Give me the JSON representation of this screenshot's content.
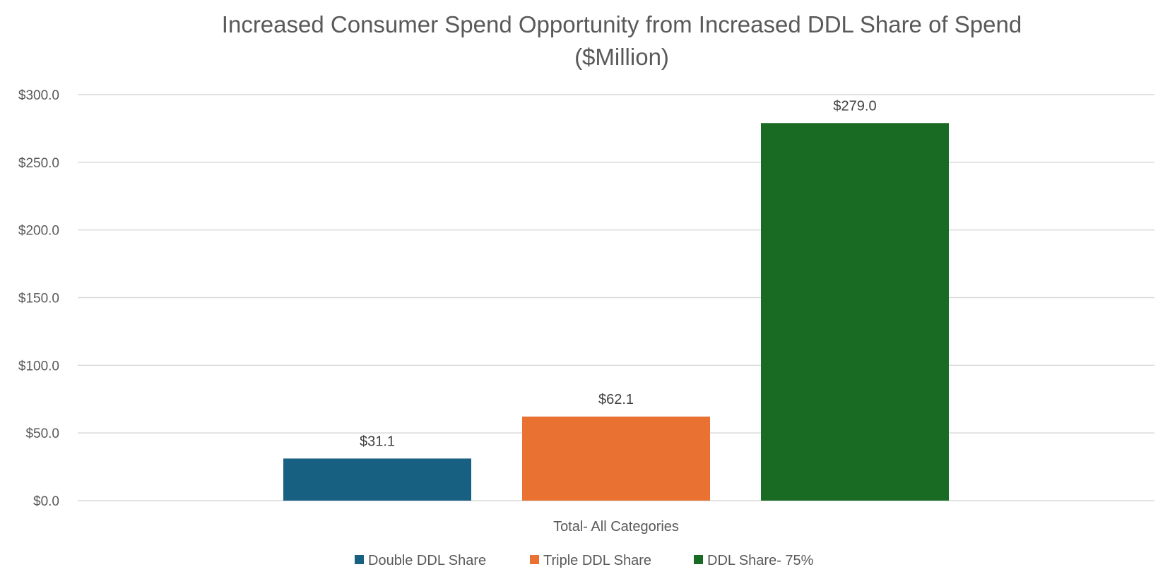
{
  "chart_data": {
    "type": "bar",
    "title_lines": [
      "Increased Consumer Spend Opportunity from Increased DDL Share of Spend",
      "($Million)"
    ],
    "xlabel": "",
    "ylabel": "",
    "categories": [
      "Total- All Categories"
    ],
    "series": [
      {
        "name": "Double DDL Share",
        "values": [
          31.1
        ],
        "label": "$31.1",
        "color": "#176081"
      },
      {
        "name": "Triple DDL Share",
        "values": [
          62.1
        ],
        "label": "$62.1",
        "color": "#E97132"
      },
      {
        "name": "DDL Share- 75%",
        "values": [
          279.0
        ],
        "label": "$279.0",
        "color": "#196B24"
      }
    ],
    "ylim": [
      0,
      300
    ],
    "yticks": [
      0,
      50,
      100,
      150,
      200,
      250,
      300
    ],
    "ytick_labels": [
      "$0.0",
      "$50.0",
      "$100.0",
      "$150.0",
      "$200.0",
      "$250.0",
      "$300.0"
    ],
    "grid": true,
    "legend_position": "bottom"
  }
}
